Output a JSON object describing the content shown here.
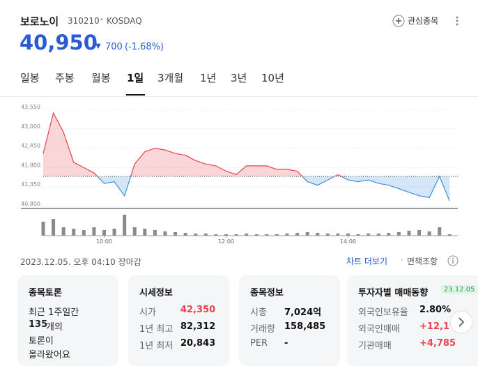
{
  "header": {
    "name": "보로노이",
    "code": "310210",
    "separator": "•",
    "market": "KOSDAQ",
    "watch": "관심종목"
  },
  "price": {
    "current": "40,950",
    "arrow": "▼",
    "change": "700",
    "change_pct": "(-1.68%)"
  },
  "tabs": [
    "일봉",
    "주봉",
    "월봉",
    "1일",
    "3개월",
    "1년",
    "3년",
    "10년"
  ],
  "active_tab": 3,
  "chart_data": {
    "type": "line",
    "categories": [
      null,
      null,
      null,
      null,
      null,
      null,
      "10:00",
      null,
      null,
      null,
      null,
      null,
      null,
      null,
      null,
      null,
      null,
      null,
      "12:00",
      null,
      null,
      null,
      null,
      null,
      null,
      null,
      null,
      null,
      null,
      null,
      "14:00",
      null,
      null,
      null,
      null,
      null,
      null,
      null,
      null,
      null,
      null
    ],
    "values": [
      42300,
      43450,
      42900,
      42050,
      41900,
      41750,
      41450,
      41500,
      41100,
      42000,
      42350,
      42450,
      42400,
      42300,
      42250,
      42100,
      42000,
      41950,
      41800,
      41700,
      41950,
      41950,
      41950,
      41850,
      41850,
      41800,
      41500,
      41400,
      41550,
      41700,
      41550,
      41500,
      41550,
      41450,
      41400,
      41300,
      41200,
      41100,
      41050,
      41650,
      40950
    ],
    "baseline": 41650,
    "up_color": "#e8434e",
    "down_color": "#3d8fdc",
    "ylim": [
      40800,
      43550
    ],
    "yticks": [
      {
        "value": 40800,
        "label": "40,800"
      },
      {
        "value": 41350,
        "label": "41,350"
      },
      {
        "value": 41900,
        "label": "41,900"
      },
      {
        "value": 42450,
        "label": "42,450"
      },
      {
        "value": 43000,
        "label": "43,000"
      },
      {
        "value": 43550,
        "label": "43,550"
      }
    ],
    "grid": true,
    "volume": {
      "values": [
        20,
        24,
        12,
        10,
        8,
        12,
        8,
        10,
        30,
        12,
        10,
        8,
        6,
        5,
        4,
        3,
        3,
        2,
        2,
        2,
        3,
        2,
        2,
        2,
        3,
        4,
        5,
        4,
        3,
        3,
        3,
        2,
        3,
        3,
        4,
        5,
        7,
        8,
        6,
        12,
        2
      ],
      "ylim": [
        0,
        34
      ],
      "color": "#8a8a8a"
    }
  },
  "status": {
    "datetime": "2023.12.05. 오후 04:10 장마감",
    "more": "차트 더보기",
    "separator": "·",
    "disclaimer": "면책조항"
  },
  "cards": {
    "discussion": {
      "title": "종목토론",
      "line1": "최근 1주일간",
      "count": "135",
      "count_suffix": "개의",
      "line3": "토론이",
      "line4": "올라왔어요"
    },
    "quote": {
      "title": "시세정보",
      "rows": [
        [
          "시가",
          "42,350"
        ],
        [
          "1년 최고",
          "82,312"
        ],
        [
          "1년 최저",
          "20,843"
        ]
      ]
    },
    "info": {
      "title": "종목정보",
      "rows": [
        [
          "시총",
          "7,024억"
        ],
        [
          "거래량",
          "158,485"
        ],
        [
          "PER",
          "-"
        ]
      ]
    },
    "investor": {
      "title": "투자자별 매매동향",
      "badge": "23.12.05",
      "rows": [
        [
          "외국인보유율",
          "2.80%"
        ],
        [
          "외국인매매",
          "+12,1"
        ],
        [
          "기관매매",
          "+4,785"
        ]
      ]
    }
  }
}
